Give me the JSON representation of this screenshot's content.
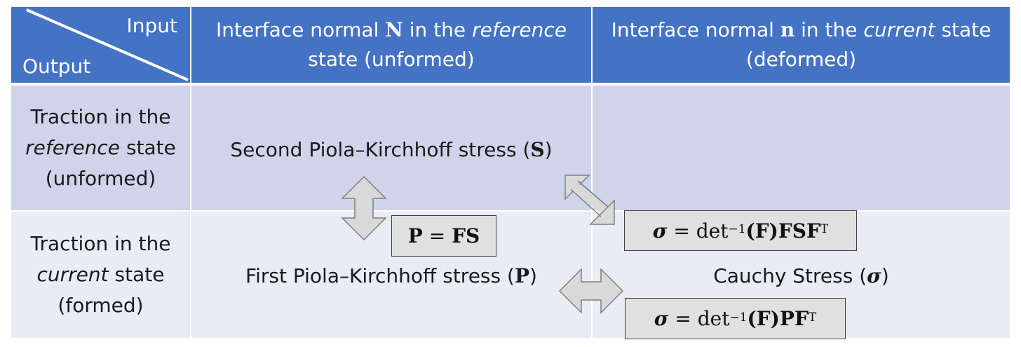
{
  "corner": {
    "input_label": "Input",
    "output_label": "Output"
  },
  "columns": [
    {
      "prefix": "Interface normal ",
      "symbol": "N",
      "mid": " in the ",
      "emph": "reference",
      "suffix": " state (unformed)"
    },
    {
      "prefix": "Interface normal ",
      "symbol": "n",
      "mid": " in the ",
      "emph": "current",
      "suffix": " state (deformed)"
    }
  ],
  "rows": [
    {
      "line1": "Traction in the",
      "emph": "reference",
      "line2_rest": " state",
      "line3": "(unformed)"
    },
    {
      "line1": "Traction in the",
      "emph": "current",
      "line2_rest": " state",
      "line3": "(formed)"
    }
  ],
  "cells": {
    "second_pk": {
      "label": "Second Piola–Kirchhoff stress (",
      "symbol": "S",
      "close": ")"
    },
    "first_pk": {
      "label": "First Piola–Kirchhoff stress (",
      "symbol": "P",
      "close": ")"
    },
    "cauchy": {
      "label": "Cauchy Stress (",
      "symbol": "σ",
      "close": ")"
    }
  },
  "equations": {
    "p_fs": {
      "lhs": "P",
      "op": " = ",
      "rhs": "FS"
    },
    "sigma_fsf": {
      "lhs": "σ",
      "op": " = det",
      "exp": "−1",
      "arg": "(F)",
      "rhs": "FSF",
      "sup": "T"
    },
    "sigma_pf": {
      "lhs": "σ",
      "op": " = det",
      "exp": "−1",
      "arg": "(F)",
      "rhs": "PF",
      "sup": "T"
    }
  },
  "colors": {
    "header_bg": "#4472c4",
    "row1_bg": "#cfd4ea",
    "row2_bg": "#e9ebf5",
    "equation_box_bg": "#e0e0e0",
    "arrow_fill": "#d9d9d9",
    "arrow_stroke": "#7f7f7f"
  }
}
